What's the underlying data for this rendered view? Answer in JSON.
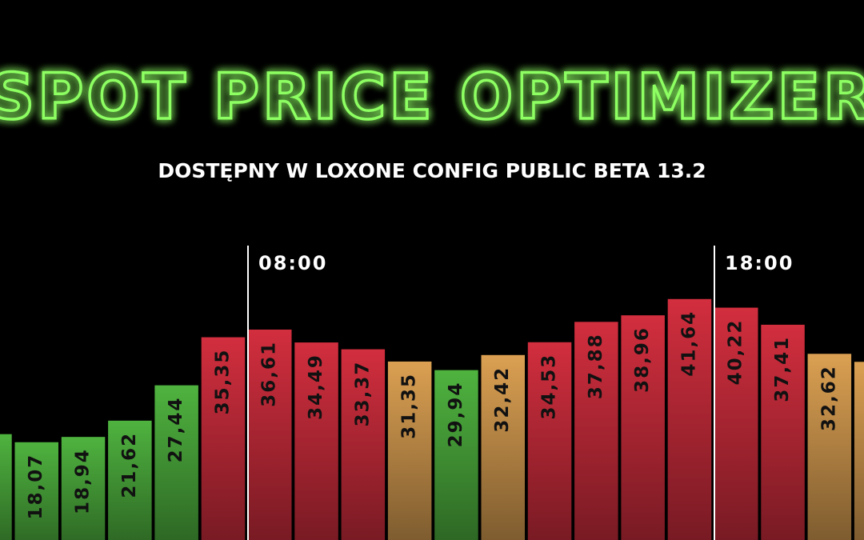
{
  "chart_data": {
    "type": "bar",
    "title": "SPOT PRICE OPTIMIZER",
    "subtitle": "DOSTĘPNY W LOXONE CONFIG PUBLIC BETA 13.2",
    "values": [
      19.4,
      18.07,
      18.94,
      21.62,
      27.44,
      35.35,
      36.61,
      34.49,
      33.37,
      31.35,
      29.94,
      32.42,
      34.53,
      37.88,
      38.96,
      41.64,
      40.22,
      37.41,
      32.62,
      31.3
    ],
    "value_labels": [
      null,
      "18,07",
      "18,94",
      "21,62",
      "27,44",
      "35,35",
      "36,61",
      "34,49",
      "33,37",
      "31,35",
      "29,94",
      "32,42",
      "34,53",
      "37,88",
      "38,96",
      "41,64",
      "40,22",
      "37,41",
      "32,62",
      null
    ],
    "colors": [
      "#4fb33f",
      "#4fb33f",
      "#4fb33f",
      "#4fb33f",
      "#4fb33f",
      "#d22e3e",
      "#d22e3e",
      "#d22e3e",
      "#d22e3e",
      "#dba052",
      "#4fb33f",
      "#dba052",
      "#d22e3e",
      "#d22e3e",
      "#d22e3e",
      "#d22e3e",
      "#d22e3e",
      "#d22e3e",
      "#dba052",
      "#dba052"
    ],
    "markers": [
      {
        "label": "08:00"
      },
      {
        "label": "18:00"
      }
    ]
  }
}
